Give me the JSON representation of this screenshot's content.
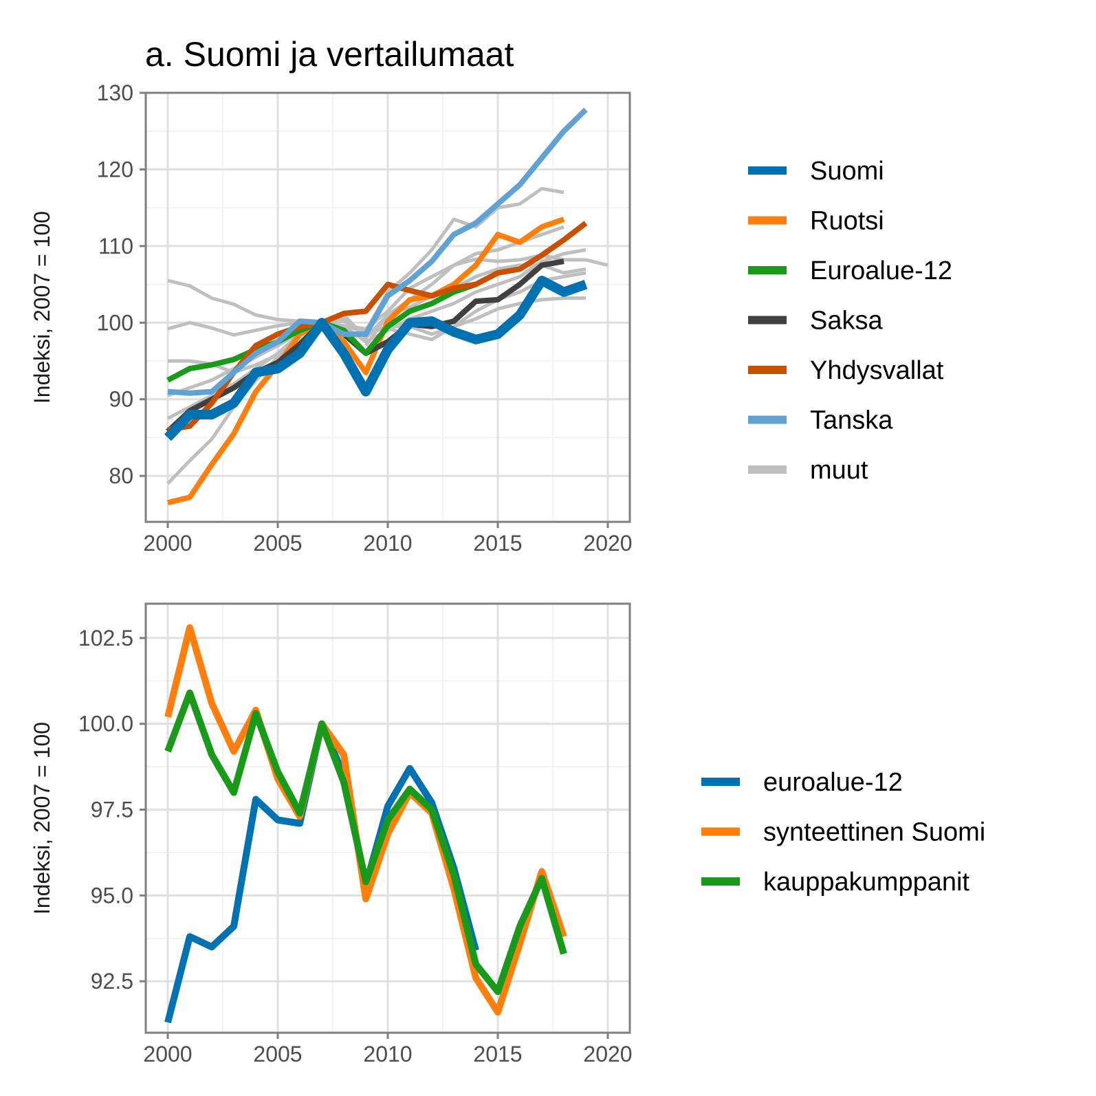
{
  "chart_data": [
    {
      "type": "line",
      "title": "a. Suomi ja vertailumaat",
      "xlabel": "",
      "ylabel": "Indeksi, 2007 = 100",
      "xlim": [
        1999,
        2021
      ],
      "ylim": [
        74,
        130
      ],
      "xticks": [
        2000,
        2005,
        2010,
        2015,
        2020
      ],
      "yticks": [
        80,
        90,
        100,
        110,
        120,
        130
      ],
      "grid": true,
      "legend_position": "right",
      "legend": [
        {
          "name": "Suomi",
          "color": "#0072B2"
        },
        {
          "name": "Ruotsi",
          "color": "#FF7F0E"
        },
        {
          "name": "Euroalue-12",
          "color": "#1A9A1A"
        },
        {
          "name": "Saksa",
          "color": "#404040"
        },
        {
          "name": "Yhdysvallat",
          "color": "#C95000"
        },
        {
          "name": "Tanska",
          "color": "#5FA2D3"
        },
        {
          "name": "muut",
          "color": "#BFBFBF"
        }
      ],
      "others": [
        {
          "color": "#BFBFBF",
          "x": [
            2000,
            2001,
            2002,
            2003,
            2004,
            2005,
            2006,
            2007,
            2008,
            2009,
            2010,
            2011,
            2012,
            2013,
            2014,
            2015,
            2016,
            2017,
            2018
          ],
          "y": [
            105.5,
            104.8,
            103.2,
            102.4,
            101,
            100.4,
            100.2,
            100,
            99.5,
            98.9,
            104,
            106.5,
            109.5,
            113.5,
            112.5,
            115,
            115.5,
            117.5,
            117
          ]
        },
        {
          "color": "#BFBFBF",
          "x": [
            2000,
            2001,
            2002,
            2003,
            2004,
            2005,
            2006,
            2007,
            2008,
            2009,
            2010,
            2011,
            2012,
            2013,
            2014,
            2015,
            2016,
            2017,
            2018,
            2019,
            2020
          ],
          "y": [
            99.2,
            100,
            99.3,
            98.4,
            99,
            99.6,
            100,
            100,
            99.6,
            99.2,
            101.5,
            104.5,
            106,
            107.5,
            108.3,
            108,
            108.2,
            108.8,
            108.2,
            108.2,
            107.5
          ]
        },
        {
          "color": "#BFBFBF",
          "x": [
            2000,
            2001,
            2002,
            2003,
            2004,
            2005,
            2006,
            2007,
            2008,
            2009,
            2010,
            2011,
            2012,
            2013,
            2014,
            2015,
            2016,
            2017,
            2018,
            2019
          ],
          "y": [
            95,
            95,
            94.6,
            93.5,
            94.5,
            95.8,
            98.5,
            100,
            101,
            98,
            101,
            102,
            103.5,
            104.5,
            106,
            107,
            107.5,
            107.5,
            106.5,
            107
          ]
        },
        {
          "color": "#BFBFBF",
          "x": [
            2000,
            2001,
            2002,
            2003,
            2004,
            2005,
            2006,
            2007,
            2008,
            2009,
            2010,
            2011,
            2012,
            2013,
            2014,
            2015,
            2016,
            2017,
            2018,
            2019
          ],
          "y": [
            87.5,
            89,
            90.5,
            92,
            94,
            96,
            98.5,
            100,
            100.5,
            98.5,
            99.5,
            99.5,
            98.5,
            99.5,
            101.5,
            103,
            104,
            105.5,
            106,
            106.5
          ]
        },
        {
          "color": "#BFBFBF",
          "x": [
            2000,
            2001,
            2002,
            2003,
            2004,
            2005,
            2006,
            2007,
            2008,
            2009,
            2010,
            2011,
            2012,
            2013,
            2014,
            2015,
            2016,
            2017,
            2018,
            2019
          ],
          "y": [
            79,
            82,
            84.8,
            89,
            92.5,
            95.5,
            98.5,
            100,
            100.2,
            98.8,
            99.2,
            98.5,
            97.8,
            99.5,
            100.5,
            101.8,
            102.5,
            103,
            103.2,
            103.2
          ]
        },
        {
          "color": "#BFBFBF",
          "x": [
            2000,
            2001,
            2002,
            2003,
            2004,
            2005,
            2006,
            2007,
            2008,
            2009,
            2010,
            2011,
            2012,
            2013,
            2014,
            2015,
            2016,
            2017,
            2018,
            2019
          ],
          "y": [
            90.5,
            91.5,
            92.5,
            94,
            95.5,
            97,
            98.8,
            100,
            99.5,
            97.5,
            99,
            100.5,
            101.5,
            102.5,
            104,
            105,
            106,
            108,
            109,
            109.5
          ]
        },
        {
          "color": "#BFBFBF",
          "x": [
            2009,
            2010,
            2011,
            2012,
            2013,
            2014,
            2015,
            2016,
            2017,
            2018
          ],
          "y": [
            97,
            101,
            103,
            105,
            107.5,
            109,
            109.5,
            110.5,
            111.5,
            112.5
          ]
        }
      ],
      "series": [
        {
          "name": "Ruotsi",
          "color": "#FF7F0E",
          "x": [
            2000,
            2001,
            2002,
            2003,
            2004,
            2005,
            2006,
            2007,
            2008,
            2009,
            2010,
            2011,
            2012,
            2013,
            2014,
            2015,
            2016,
            2017,
            2018
          ],
          "y": [
            76.5,
            77.2,
            81.5,
            85.5,
            91,
            94.5,
            98.5,
            100,
            97.5,
            93.5,
            100.2,
            103,
            103.5,
            105,
            107.5,
            111.5,
            110.5,
            112.5,
            113.5
          ]
        },
        {
          "name": "Saksa",
          "color": "#404040",
          "x": [
            2000,
            2001,
            2002,
            2003,
            2004,
            2005,
            2006,
            2007,
            2008,
            2009,
            2010,
            2011,
            2012,
            2013,
            2014,
            2015,
            2016,
            2017,
            2018
          ],
          "y": [
            85.8,
            88.5,
            90,
            91.5,
            93.5,
            94.8,
            97.2,
            100,
            98.5,
            96,
            97.5,
            99.8,
            99.5,
            100.2,
            102.8,
            103,
            105,
            107.5,
            108
          ]
        },
        {
          "name": "Euroalue-12",
          "color": "#1A9A1A",
          "x": [
            2000,
            2001,
            2002,
            2003,
            2004,
            2005,
            2006,
            2007,
            2008,
            2009,
            2010,
            2011,
            2012,
            2013,
            2014
          ],
          "y": [
            92.5,
            94,
            94.5,
            95.2,
            96.5,
            97.5,
            99,
            100,
            99,
            96,
            99.5,
            101.5,
            102.5,
            104,
            105
          ]
        },
        {
          "name": "Yhdysvallat",
          "color": "#C95000",
          "x": [
            2000,
            2001,
            2002,
            2003,
            2004,
            2005,
            2006,
            2007,
            2008,
            2009,
            2010,
            2011,
            2012,
            2013,
            2014,
            2015,
            2016,
            2017,
            2018,
            2019
          ],
          "y": [
            86,
            86.5,
            89.5,
            93.5,
            97,
            98.5,
            99.5,
            100,
            101.2,
            101.5,
            105,
            104.2,
            103.5,
            104.5,
            105,
            106.5,
            107,
            108.8,
            110.8,
            113
          ]
        },
        {
          "name": "Tanska",
          "color": "#5FA2D3",
          "x": [
            2000,
            2001,
            2002,
            2003,
            2004,
            2005,
            2006,
            2007,
            2008,
            2009,
            2010,
            2011,
            2012,
            2013,
            2014,
            2015,
            2016,
            2017,
            2018,
            2019
          ],
          "y": [
            91,
            90.8,
            91,
            93.5,
            96,
            97.5,
            100.2,
            100,
            98.5,
            98.5,
            103.5,
            105.5,
            108,
            111.5,
            113,
            115.5,
            118,
            121.5,
            125,
            127.8
          ]
        },
        {
          "name": "Suomi",
          "color": "#0072B2",
          "x": [
            2000,
            2001,
            2002,
            2003,
            2004,
            2005,
            2006,
            2007,
            2008,
            2009,
            2010,
            2011,
            2012,
            2013,
            2014,
            2015,
            2016,
            2017,
            2018,
            2019
          ],
          "y": [
            85,
            88,
            88,
            89.5,
            93.5,
            94,
            96,
            100,
            96,
            91,
            96.5,
            100,
            100.2,
            98.8,
            97.8,
            98.5,
            101,
            105.5,
            104,
            105
          ]
        }
      ]
    },
    {
      "type": "line",
      "title": "",
      "xlabel": "",
      "ylabel": "Indeksi, 2007 = 100",
      "xlim": [
        1999,
        2021
      ],
      "ylim": [
        91.0,
        103.5
      ],
      "xticks": [
        2000,
        2005,
        2010,
        2015,
        2020
      ],
      "yticks": [
        92.5,
        95.0,
        97.5,
        100.0,
        102.5
      ],
      "ytick_labels": [
        "92.5",
        "95.0",
        "97.5",
        "100.0",
        "102.5"
      ],
      "grid": true,
      "legend_position": "right",
      "legend": [
        {
          "name": "euroalue-12",
          "color": "#0072B2"
        },
        {
          "name": "synteettinen Suomi",
          "color": "#FF7F0E"
        },
        {
          "name": "kauppakumppanit",
          "color": "#1A9A1A"
        }
      ],
      "series": [
        {
          "name": "euroalue-12",
          "color": "#0072B2",
          "x": [
            2000,
            2001,
            2002,
            2003,
            2004,
            2005,
            2006,
            2007,
            2008,
            2009,
            2010,
            2011,
            2012,
            2013,
            2014
          ],
          "y": [
            91.3,
            93.8,
            93.5,
            94.1,
            97.8,
            97.2,
            97.1,
            100,
            98.5,
            95.3,
            97.6,
            98.7,
            97.7,
            95.8,
            93.4
          ]
        },
        {
          "name": "synteettinen Suomi",
          "color": "#FF7F0E",
          "x": [
            2000,
            2001,
            2002,
            2003,
            2004,
            2005,
            2006,
            2007,
            2008,
            2009,
            2010,
            2011,
            2012,
            2013,
            2014,
            2015,
            2016,
            2017,
            2018
          ],
          "y": [
            100.2,
            102.8,
            100.6,
            99.2,
            100.4,
            98.4,
            97.3,
            100,
            99.1,
            94.9,
            96.8,
            98,
            97.4,
            95.2,
            92.6,
            91.6,
            93.6,
            95.7,
            93.8
          ]
        },
        {
          "name": "kauppakumppanit",
          "color": "#1A9A1A",
          "x": [
            2000,
            2001,
            2002,
            2003,
            2004,
            2005,
            2006,
            2007,
            2008,
            2009,
            2010,
            2011,
            2012,
            2013,
            2014,
            2015,
            2016,
            2017,
            2018
          ],
          "y": [
            99.2,
            100.9,
            99.1,
            98,
            100.3,
            98.6,
            97.4,
            100,
            98.3,
            95.4,
            97.2,
            98.1,
            97.5,
            95.6,
            93,
            92.2,
            94.1,
            95.5,
            93.3
          ]
        }
      ]
    }
  ]
}
